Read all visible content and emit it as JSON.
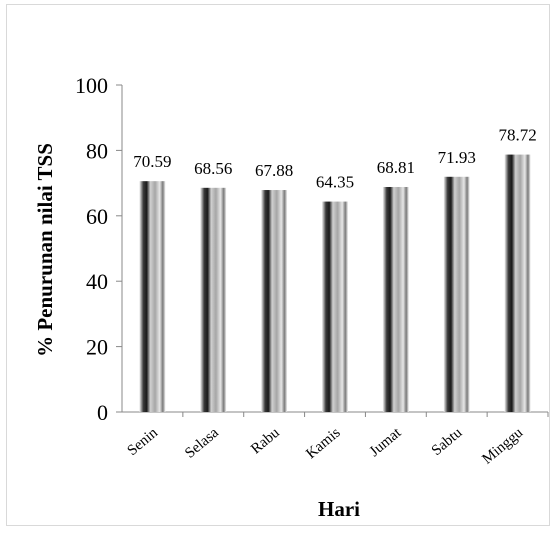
{
  "chart_data": {
    "type": "bar",
    "categories": [
      "Senin",
      "Selasa",
      "Rabu",
      "Kamis",
      "Jumat",
      "Sabtu",
      "Minggu"
    ],
    "values": [
      70.59,
      68.56,
      67.88,
      64.35,
      68.81,
      71.93,
      78.72
    ],
    "data_labels": [
      "70.59",
      "68.56",
      "67.88",
      "64.35",
      "68.81",
      "71.93",
      "78.72"
    ],
    "xlabel": "Hari",
    "ylabel": "% Penurunan nilai TSS",
    "ylim": [
      0,
      100
    ],
    "yticks": [
      "0",
      "20",
      "40",
      "60",
      "80",
      "100"
    ],
    "grid": false,
    "legend": "none",
    "bar_fill": "gradient-gray"
  }
}
